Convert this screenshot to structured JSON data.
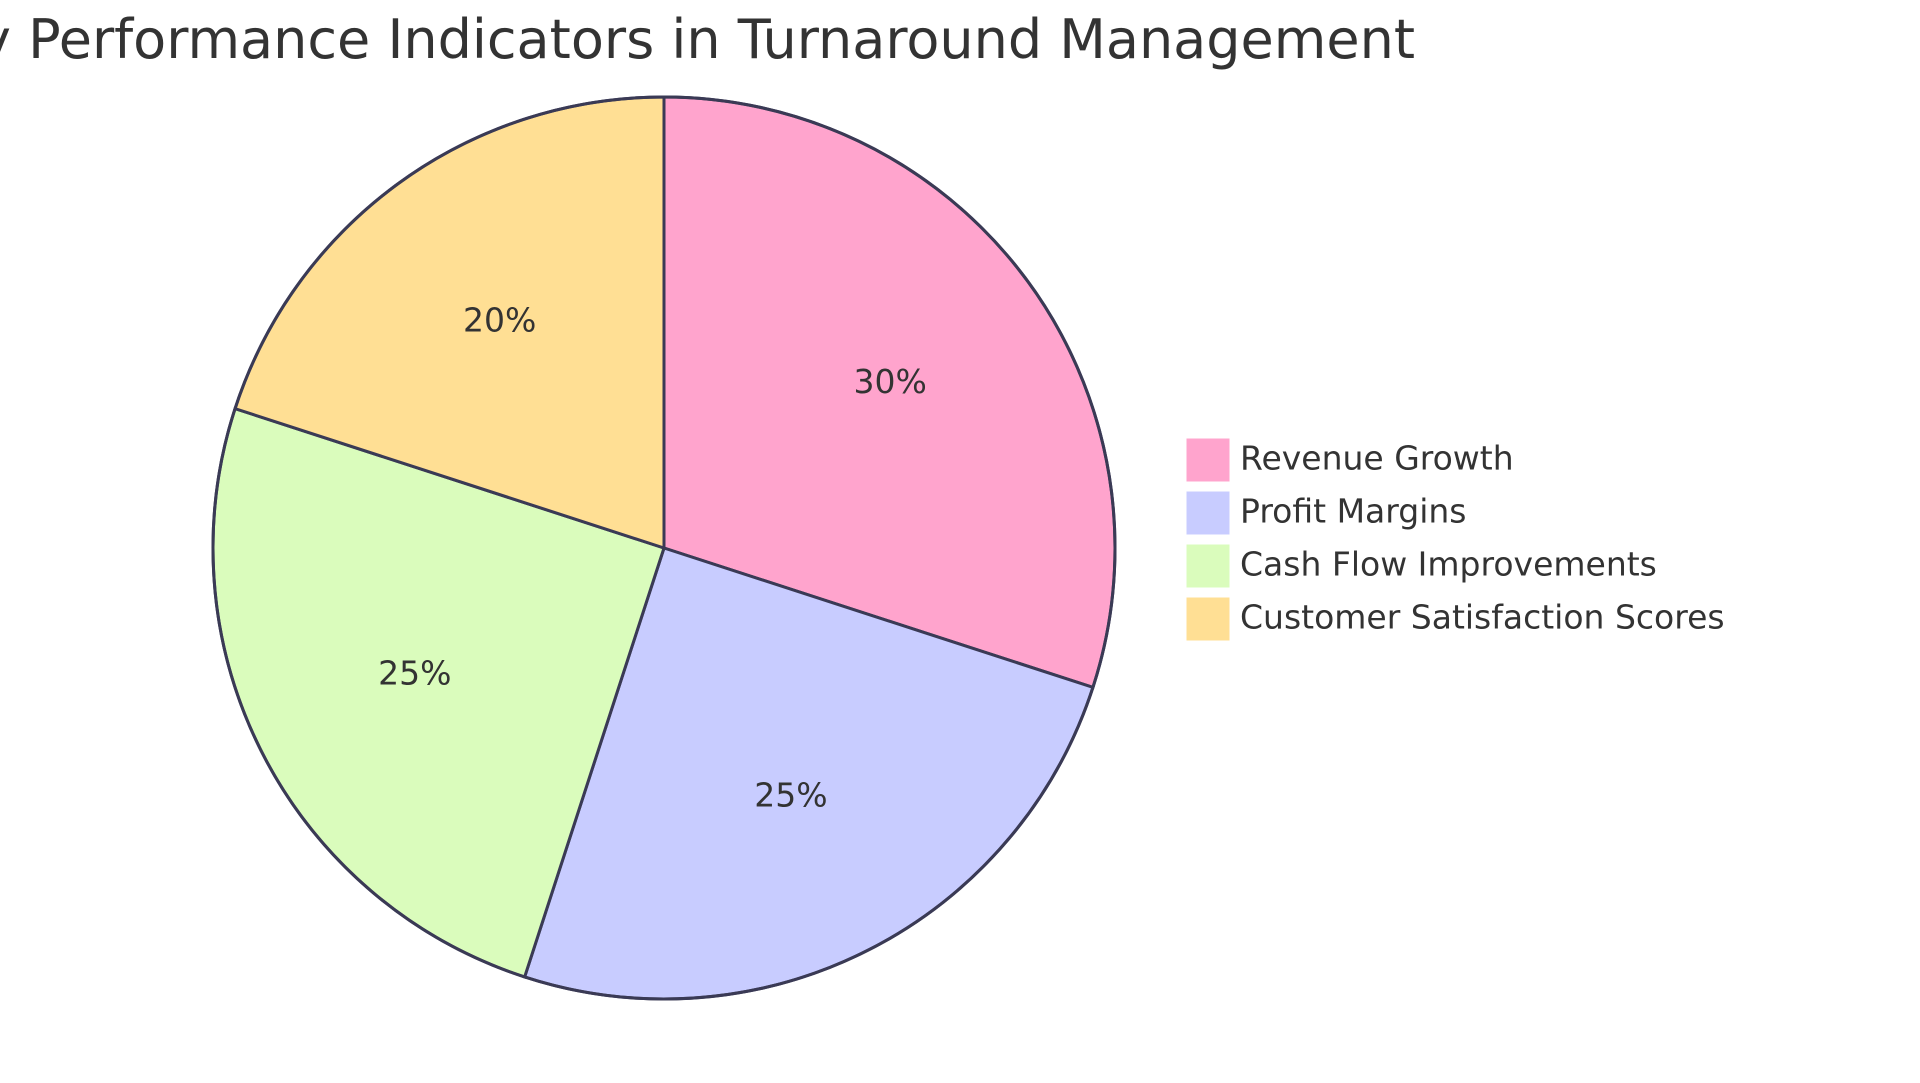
{
  "chart_data": {
    "type": "pie",
    "title": "Key Performance Indicators in Turnaround Management",
    "categories": [
      "Revenue Growth",
      "Profit Margins",
      "Cash Flow Improvements",
      "Customer Satisfaction Scores"
    ],
    "values": [
      30,
      25,
      25,
      20
    ],
    "slice_labels": [
      "30%",
      "25%",
      "25%",
      "20%"
    ],
    "colors": [
      "#ffa4cd",
      "#c8ccff",
      "#dafcbc",
      "#ffdf94"
    ],
    "legend_position": "right",
    "start_angle": "12 o'clock",
    "direction": "clockwise"
  }
}
